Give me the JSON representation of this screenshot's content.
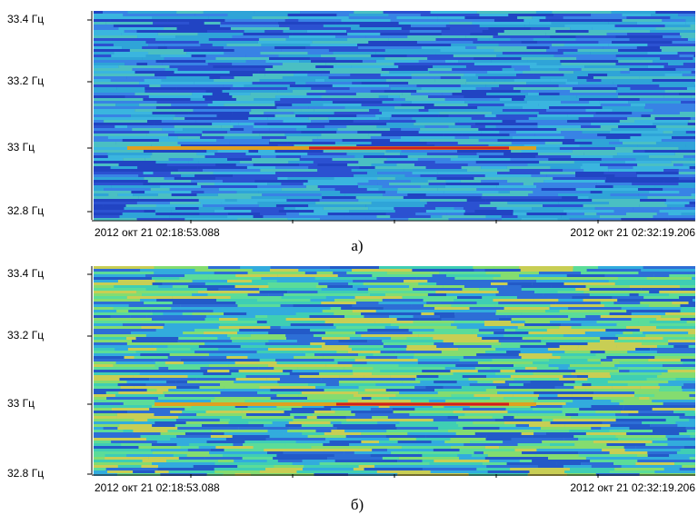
{
  "panels": [
    {
      "yticks": [
        "33.4 Гц",
        "33.2 Гц",
        "33 Гц",
        "32.8 Гц"
      ],
      "x_start": "2012 окт 21 02:18:53.088",
      "x_end": "2012 окт 21 02:32:19.206",
      "caption": "а)"
    },
    {
      "yticks": [
        "33.4 Гц",
        "33.2 Гц",
        "33 Гц",
        "32.8 Гц"
      ],
      "x_start": "2012 окт 21 02:18:53.088",
      "x_end": "2012 окт 21 02:32:19.206",
      "caption": "б)"
    }
  ]
}
